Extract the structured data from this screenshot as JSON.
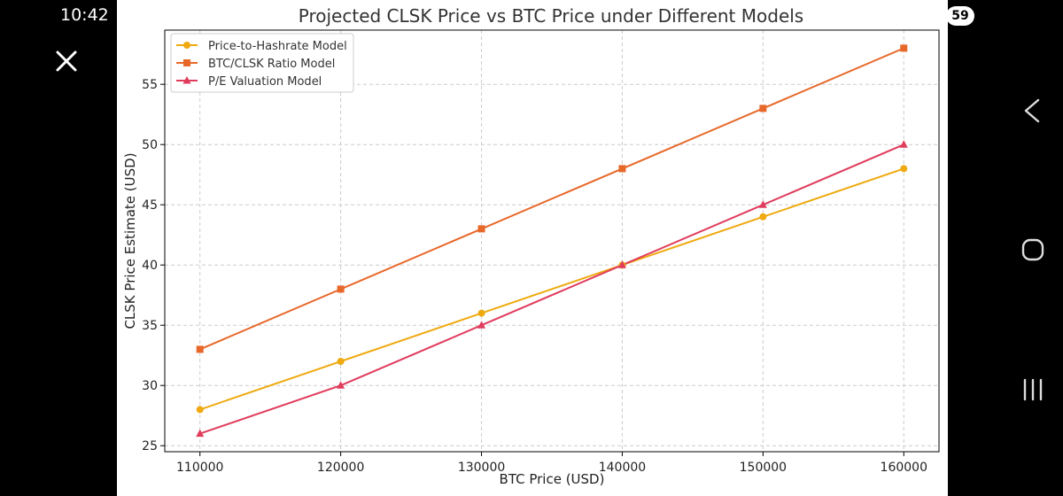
{
  "status_bar": {
    "time": "10:42",
    "badge": "59"
  },
  "colors": {
    "series1": "#eeaa10",
    "series2": "#e8682a",
    "series3": "#e03c5c",
    "grid": "#cccccc"
  },
  "icons": {
    "close": "close-icon",
    "back": "back-icon",
    "home": "home-icon",
    "recent": "recent-apps-icon"
  },
  "chart_data": {
    "type": "line",
    "title": "Projected CLSK Price vs BTC Price under Different Models",
    "xlabel": "BTC Price (USD)",
    "ylabel": "CLSK Price Estimate (USD)",
    "x": [
      110000,
      120000,
      130000,
      140000,
      150000,
      160000
    ],
    "xticks": [
      "110000",
      "120000",
      "130000",
      "140000",
      "150000",
      "160000"
    ],
    "yticks": [
      "25",
      "30",
      "35",
      "40",
      "45",
      "50",
      "55"
    ],
    "xlim": [
      107500,
      162500
    ],
    "ylim": [
      24.5,
      59.5
    ],
    "grid": true,
    "legend_position": "top-left",
    "series": [
      {
        "name": "Price-to-Hashrate Model",
        "marker": "circle",
        "color": "#eeaa10",
        "values": [
          28,
          32,
          36,
          40,
          44,
          48
        ]
      },
      {
        "name": "BTC/CLSK Ratio Model",
        "marker": "square",
        "color": "#e8682a",
        "values": [
          33,
          38,
          43,
          48,
          53,
          58
        ]
      },
      {
        "name": "P/E Valuation Model",
        "marker": "triangle",
        "color": "#e03c5c",
        "values": [
          26,
          30,
          35,
          40,
          45,
          50
        ]
      }
    ]
  }
}
